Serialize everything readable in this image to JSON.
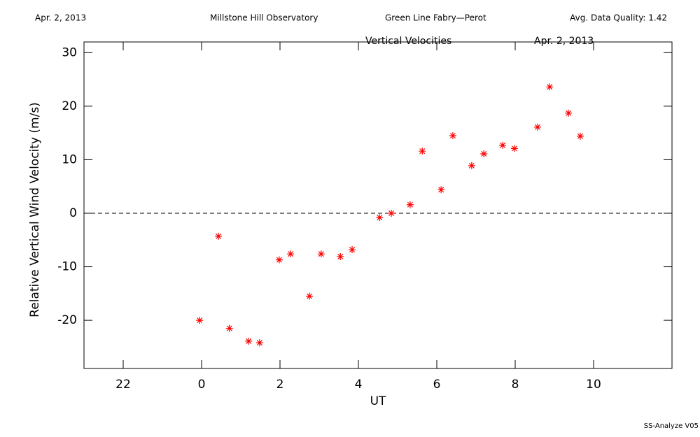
{
  "chart_data": {
    "type": "scatter",
    "header": {
      "left": "Apr. 2, 2013",
      "center_left": "Millstone Hill Observatory",
      "center_right": "Green Line Fabry—Perot",
      "right": "Avg. Data Quality: 1.42"
    },
    "title": "Vertical Velocities",
    "subtitle": "Apr. 2, 2013",
    "xlabel": "UT",
    "ylabel": "Relative Vertical Wind Velocity (m/s)",
    "footer": "SS-Analyze V05",
    "xlim": [
      -3,
      12
    ],
    "ylim": [
      -29,
      32
    ],
    "xticks": [
      {
        "value": -2,
        "label": "22"
      },
      0,
      2,
      4,
      6,
      8,
      10
    ],
    "yticks": [
      -20,
      -10,
      0,
      10,
      20,
      30
    ],
    "reference_line": 0,
    "series": [
      {
        "color": "#ff0000",
        "x": [
          -0.05,
          0.43,
          0.71,
          1.2,
          1.48,
          1.98,
          2.27,
          2.75,
          3.05,
          3.54,
          3.84,
          4.54,
          4.84,
          5.32,
          5.63,
          6.11,
          6.41,
          6.89,
          7.2,
          7.68,
          7.98,
          8.57,
          8.88,
          9.36,
          9.66
        ],
        "values": [
          -20,
          -4.3,
          -21.5,
          -23.9,
          -24.2,
          -8.7,
          -7.6,
          -15.5,
          -7.6,
          -8.1,
          -6.8,
          -0.8,
          0,
          1.6,
          11.6,
          4.4,
          14.5,
          8.9,
          11.1,
          12.7,
          12.1,
          16.1,
          23.6,
          18.7,
          14.4
        ]
      }
    ]
  }
}
